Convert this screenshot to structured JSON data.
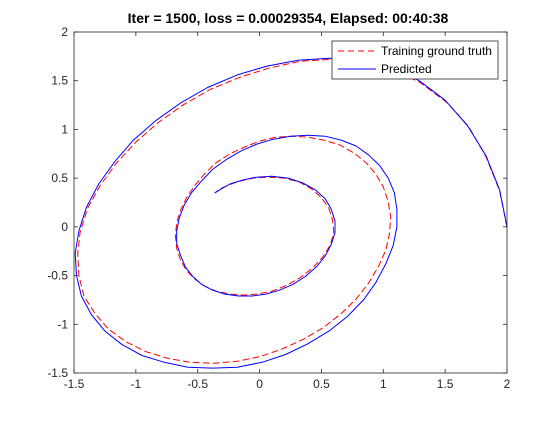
{
  "chart_data": {
    "type": "line",
    "title": "Iter = 1500, loss = 0.00029354, Elapsed: 00:40:38",
    "xlabel": "",
    "ylabel": "",
    "xlim": [
      -1.5,
      2
    ],
    "ylim": [
      -1.5,
      2
    ],
    "xticks": [
      -1.5,
      -1,
      -0.5,
      0,
      0.5,
      1,
      1.5,
      2
    ],
    "xtick_labels": [
      "-1.5",
      "-1",
      "-0.5",
      "0",
      "0.5",
      "1",
      "1.5",
      "2"
    ],
    "yticks": [
      -1.5,
      -1,
      -0.5,
      0,
      0.5,
      1,
      1.5,
      2
    ],
    "ytick_labels": [
      "-1.5",
      "-1",
      "-0.5",
      "0",
      "0.5",
      "1",
      "1.5",
      "2"
    ],
    "grid": false,
    "legend_position": "top-right",
    "series": [
      {
        "name": "Training ground truth",
        "color": "#ff0000",
        "style": "dashed",
        "x": [
          2.0,
          1.94,
          1.83,
          1.69,
          1.51,
          1.3,
          1.07,
          0.83,
          0.58,
          0.33,
          0.08,
          -0.15,
          -0.4,
          -0.62,
          -0.82,
          -1.0,
          -1.16,
          -1.29,
          -1.39,
          -1.45,
          -1.47,
          -1.46,
          -1.42,
          -1.33,
          -1.22,
          -1.08,
          -0.92,
          -0.74,
          -0.56,
          -0.37,
          -0.18,
          0.01,
          0.19,
          0.36,
          0.52,
          0.66,
          0.78,
          0.88,
          0.96,
          1.02,
          1.05,
          1.06,
          1.04,
          1.0,
          0.94,
          0.86,
          0.76,
          0.65,
          0.52,
          0.39,
          0.26,
          0.13,
          0.0,
          -0.12,
          -0.24,
          -0.35,
          -0.44,
          -0.52,
          -0.59,
          -0.64,
          -0.67,
          -0.68,
          -0.67,
          -0.64,
          -0.59,
          -0.52,
          -0.44,
          -0.35,
          -0.24,
          -0.13,
          -0.02,
          0.1,
          0.22,
          0.33,
          0.43,
          0.51,
          0.57,
          0.6,
          0.59,
          0.56,
          0.5,
          0.42,
          0.32,
          0.2,
          0.07,
          -0.05,
          -0.16,
          -0.25,
          -0.32,
          -0.35
        ],
        "y": [
          0.0,
          0.37,
          0.72,
          1.03,
          1.28,
          1.48,
          1.62,
          1.7,
          1.72,
          1.7,
          1.63,
          1.54,
          1.41,
          1.25,
          1.07,
          0.87,
          0.65,
          0.42,
          0.19,
          -0.05,
          -0.28,
          -0.5,
          -0.71,
          -0.89,
          -1.05,
          -1.18,
          -1.28,
          -1.35,
          -1.39,
          -1.4,
          -1.38,
          -1.33,
          -1.25,
          -1.15,
          -1.03,
          -0.89,
          -0.74,
          -0.58,
          -0.41,
          -0.24,
          -0.07,
          0.1,
          0.26,
          0.41,
          0.54,
          0.66,
          0.76,
          0.84,
          0.89,
          0.92,
          0.93,
          0.92,
          0.88,
          0.82,
          0.75,
          0.66,
          0.55,
          0.43,
          0.3,
          0.17,
          0.04,
          -0.09,
          -0.22,
          -0.34,
          -0.45,
          -0.54,
          -0.61,
          -0.66,
          -0.69,
          -0.7,
          -0.69,
          -0.66,
          -0.6,
          -0.52,
          -0.42,
          -0.31,
          -0.19,
          -0.06,
          0.07,
          0.19,
          0.3,
          0.39,
          0.46,
          0.5,
          0.51,
          0.5,
          0.47,
          0.43,
          0.39,
          0.36
        ]
      },
      {
        "name": "Predicted",
        "color": "#0000ff",
        "style": "solid",
        "x": [
          2.0,
          1.94,
          1.83,
          1.68,
          1.5,
          1.29,
          1.06,
          0.81,
          0.56,
          0.31,
          0.06,
          -0.18,
          -0.42,
          -0.64,
          -0.84,
          -1.02,
          -1.17,
          -1.3,
          -1.4,
          -1.46,
          -1.49,
          -1.48,
          -1.44,
          -1.36,
          -1.25,
          -1.11,
          -0.95,
          -0.77,
          -0.58,
          -0.38,
          -0.18,
          0.02,
          0.21,
          0.39,
          0.56,
          0.71,
          0.84,
          0.94,
          1.02,
          1.08,
          1.11,
          1.11,
          1.09,
          1.04,
          0.97,
          0.88,
          0.78,
          0.66,
          0.53,
          0.39,
          0.25,
          0.11,
          -0.02,
          -0.15,
          -0.27,
          -0.38,
          -0.47,
          -0.55,
          -0.61,
          -0.65,
          -0.67,
          -0.67,
          -0.64,
          -0.6,
          -0.54,
          -0.47,
          -0.38,
          -0.28,
          -0.17,
          -0.06,
          0.05,
          0.16,
          0.27,
          0.37,
          0.46,
          0.53,
          0.58,
          0.61,
          0.61,
          0.58,
          0.53,
          0.45,
          0.35,
          0.23,
          0.1,
          -0.03,
          -0.14,
          -0.24,
          -0.31,
          -0.36
        ],
        "y": [
          0.0,
          0.38,
          0.73,
          1.04,
          1.3,
          1.5,
          1.64,
          1.71,
          1.73,
          1.71,
          1.65,
          1.56,
          1.43,
          1.27,
          1.09,
          0.89,
          0.67,
          0.44,
          0.2,
          -0.04,
          -0.27,
          -0.5,
          -0.71,
          -0.9,
          -1.07,
          -1.21,
          -1.32,
          -1.39,
          -1.44,
          -1.45,
          -1.44,
          -1.39,
          -1.31,
          -1.2,
          -1.07,
          -0.92,
          -0.75,
          -0.57,
          -0.38,
          -0.19,
          0.0,
          0.18,
          0.35,
          0.5,
          0.63,
          0.74,
          0.83,
          0.89,
          0.93,
          0.94,
          0.93,
          0.9,
          0.85,
          0.78,
          0.69,
          0.59,
          0.47,
          0.35,
          0.22,
          0.09,
          -0.04,
          -0.17,
          -0.29,
          -0.41,
          -0.51,
          -0.59,
          -0.65,
          -0.69,
          -0.71,
          -0.71,
          -0.69,
          -0.65,
          -0.59,
          -0.51,
          -0.41,
          -0.3,
          -0.18,
          -0.06,
          0.06,
          0.18,
          0.29,
          0.38,
          0.45,
          0.5,
          0.52,
          0.51,
          0.48,
          0.44,
          0.39,
          0.35
        ]
      }
    ]
  }
}
